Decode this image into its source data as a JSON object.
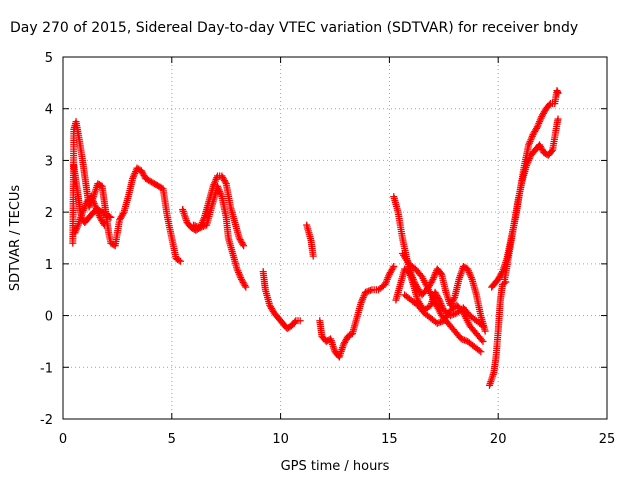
{
  "chart_data": {
    "type": "scatter",
    "title": "Day 270 of 2015, Sidereal Day-to-day VTEC variation (SDTVAR) for receiver bndy",
    "xlabel": "GPS time / hours",
    "ylabel": "SDTVAR / TECUs",
    "xlim": [
      0,
      25
    ],
    "ylim": [
      -2,
      5
    ],
    "xticks": [
      0,
      5,
      10,
      15,
      20,
      25
    ],
    "yticks": [
      -2,
      -1,
      0,
      1,
      2,
      3,
      4,
      5
    ],
    "grid": true,
    "marker": "+",
    "color": "#ff0000",
    "series": [
      {
        "name": "bndy",
        "segments": [
          [
            [
              0.45,
              1.4
            ],
            [
              0.5,
              3.6
            ],
            [
              0.6,
              3.75
            ],
            [
              0.75,
              3.4
            ],
            [
              0.9,
              3.0
            ],
            [
              1.0,
              2.7
            ],
            [
              1.1,
              2.4
            ],
            [
              1.2,
              2.1
            ],
            [
              1.4,
              2.3
            ],
            [
              1.6,
              2.55
            ],
            [
              1.8,
              2.5
            ],
            [
              1.9,
              2.2
            ],
            [
              2.0,
              1.9
            ],
            [
              2.1,
              1.6
            ],
            [
              2.2,
              1.4
            ],
            [
              2.4,
              1.35
            ],
            [
              2.5,
              1.6
            ],
            [
              2.6,
              1.85
            ],
            [
              2.8,
              2.0
            ],
            [
              3.0,
              2.3
            ],
            [
              3.2,
              2.65
            ],
            [
              3.4,
              2.85
            ],
            [
              3.6,
              2.8
            ],
            [
              3.8,
              2.65
            ],
            [
              4.0,
              2.6
            ],
            [
              4.2,
              2.55
            ],
            [
              4.4,
              2.5
            ],
            [
              4.6,
              2.45
            ],
            [
              4.8,
              1.9
            ],
            [
              5.0,
              1.5
            ],
            [
              5.2,
              1.1
            ],
            [
              5.4,
              1.05
            ]
          ],
          [
            [
              0.5,
              2.9
            ],
            [
              0.6,
              2.6
            ],
            [
              0.7,
              2.3
            ],
            [
              0.8,
              2.0
            ],
            [
              0.9,
              1.85
            ],
            [
              1.0,
              1.8
            ],
            [
              1.2,
              1.9
            ],
            [
              1.4,
              2.0
            ],
            [
              1.6,
              2.05
            ],
            [
              1.8,
              2.0
            ],
            [
              2.0,
              1.95
            ],
            [
              2.2,
              1.9
            ]
          ],
          [
            [
              0.55,
              1.6
            ],
            [
              0.7,
              1.75
            ],
            [
              0.9,
              2.0
            ],
            [
              1.1,
              2.2
            ],
            [
              1.3,
              2.3
            ],
            [
              1.5,
              2.1
            ],
            [
              1.7,
              1.9
            ],
            [
              1.9,
              1.75
            ]
          ],
          [
            [
              5.5,
              2.05
            ],
            [
              5.7,
              1.8
            ],
            [
              5.9,
              1.7
            ],
            [
              6.1,
              1.65
            ],
            [
              6.3,
              1.7
            ],
            [
              6.5,
              1.9
            ],
            [
              6.7,
              2.2
            ],
            [
              6.9,
              2.5
            ],
            [
              7.1,
              2.7
            ],
            [
              7.3,
              2.7
            ],
            [
              7.5,
              2.55
            ],
            [
              7.7,
              2.1
            ],
            [
              7.9,
              1.8
            ],
            [
              8.1,
              1.5
            ],
            [
              8.3,
              1.35
            ]
          ],
          [
            [
              6.0,
              1.75
            ],
            [
              6.3,
              1.7
            ],
            [
              6.6,
              1.75
            ],
            [
              6.9,
              2.2
            ],
            [
              7.1,
              2.5
            ],
            [
              7.3,
              2.3
            ],
            [
              7.5,
              1.9
            ],
            [
              7.6,
              1.5
            ],
            [
              7.8,
              1.2
            ],
            [
              8.0,
              0.9
            ],
            [
              8.2,
              0.7
            ],
            [
              8.4,
              0.55
            ]
          ],
          [
            [
              9.2,
              0.85
            ],
            [
              9.3,
              0.5
            ],
            [
              9.5,
              0.2
            ],
            [
              9.7,
              0.05
            ],
            [
              9.9,
              -0.05
            ],
            [
              10.1,
              -0.15
            ],
            [
              10.3,
              -0.25
            ],
            [
              10.5,
              -0.2
            ],
            [
              10.7,
              -0.1
            ],
            [
              10.9,
              -0.1
            ]
          ],
          [
            [
              11.2,
              1.75
            ],
            [
              11.4,
              1.45
            ],
            [
              11.5,
              1.15
            ]
          ],
          [
            [
              11.8,
              -0.1
            ],
            [
              11.9,
              -0.4
            ],
            [
              12.1,
              -0.5
            ],
            [
              12.3,
              -0.45
            ],
            [
              12.5,
              -0.7
            ],
            [
              12.7,
              -0.8
            ],
            [
              12.9,
              -0.55
            ],
            [
              13.1,
              -0.4
            ],
            [
              13.3,
              -0.35
            ],
            [
              13.5,
              -0.05
            ],
            [
              13.7,
              0.25
            ],
            [
              13.9,
              0.45
            ],
            [
              14.2,
              0.5
            ],
            [
              14.5,
              0.5
            ],
            [
              14.8,
              0.6
            ],
            [
              15.0,
              0.8
            ],
            [
              15.2,
              0.95
            ]
          ],
          [
            [
              15.2,
              2.3
            ],
            [
              15.4,
              2.0
            ],
            [
              15.6,
              1.5
            ],
            [
              15.8,
              1.1
            ],
            [
              16.0,
              0.8
            ],
            [
              16.2,
              0.6
            ],
            [
              16.5,
              0.4
            ],
            [
              16.8,
              0.55
            ],
            [
              17.0,
              0.7
            ],
            [
              17.2,
              0.9
            ],
            [
              17.4,
              0.8
            ],
            [
              17.6,
              0.45
            ],
            [
              17.8,
              0.2
            ],
            [
              18.0,
              0.35
            ],
            [
              18.2,
              0.7
            ],
            [
              18.4,
              0.95
            ],
            [
              18.6,
              0.9
            ],
            [
              18.8,
              0.7
            ],
            [
              19.0,
              0.4
            ],
            [
              19.2,
              0.0
            ],
            [
              19.4,
              -0.3
            ]
          ],
          [
            [
              15.3,
              0.3
            ],
            [
              15.5,
              0.6
            ],
            [
              15.7,
              0.9
            ],
            [
              15.9,
              0.85
            ],
            [
              16.1,
              0.6
            ],
            [
              16.3,
              0.3
            ],
            [
              16.6,
              0.1
            ],
            [
              16.9,
              0.2
            ],
            [
              17.1,
              0.45
            ],
            [
              17.3,
              0.3
            ],
            [
              17.5,
              0.1
            ],
            [
              17.8,
              0.0
            ],
            [
              18.1,
              0.05
            ],
            [
              18.4,
              0.15
            ],
            [
              18.7,
              0.0
            ],
            [
              19.0,
              -0.1
            ],
            [
              19.3,
              -0.2
            ]
          ],
          [
            [
              15.6,
              1.2
            ],
            [
              15.9,
              1.0
            ],
            [
              16.2,
              0.9
            ],
            [
              16.5,
              0.75
            ],
            [
              16.8,
              0.5
            ],
            [
              17.1,
              0.25
            ],
            [
              17.4,
              0.0
            ],
            [
              17.7,
              -0.15
            ],
            [
              18.0,
              -0.3
            ],
            [
              18.3,
              -0.45
            ],
            [
              18.6,
              -0.5
            ],
            [
              18.9,
              -0.6
            ],
            [
              19.2,
              -0.7
            ]
          ],
          [
            [
              15.7,
              0.4
            ],
            [
              16.0,
              0.3
            ],
            [
              16.3,
              0.2
            ],
            [
              16.6,
              0.05
            ],
            [
              16.9,
              -0.05
            ],
            [
              17.2,
              -0.15
            ],
            [
              17.5,
              -0.1
            ],
            [
              17.8,
              0.1
            ],
            [
              18.1,
              0.2
            ],
            [
              18.4,
              0.05
            ],
            [
              18.7,
              -0.2
            ],
            [
              19.0,
              -0.35
            ],
            [
              19.3,
              -0.5
            ]
          ],
          [
            [
              19.6,
              -1.35
            ],
            [
              19.8,
              -1.1
            ],
            [
              19.9,
              -0.8
            ],
            [
              20.0,
              -0.3
            ],
            [
              20.1,
              0.3
            ],
            [
              20.2,
              0.6
            ],
            [
              20.35,
              0.65
            ]
          ],
          [
            [
              19.7,
              0.55
            ],
            [
              19.8,
              0.6
            ],
            [
              20.0,
              0.7
            ],
            [
              20.2,
              0.85
            ],
            [
              20.4,
              1.1
            ],
            [
              20.6,
              1.5
            ],
            [
              20.8,
              1.9
            ],
            [
              21.0,
              2.4
            ],
            [
              21.2,
              2.9
            ],
            [
              21.4,
              3.3
            ],
            [
              21.6,
              3.5
            ],
            [
              21.8,
              3.65
            ],
            [
              22.0,
              3.85
            ],
            [
              22.2,
              4.0
            ],
            [
              22.4,
              4.1
            ],
            [
              22.6,
              4.1
            ],
            [
              22.7,
              4.35
            ],
            [
              22.75,
              4.3
            ]
          ],
          [
            [
              20.3,
              0.7
            ],
            [
              20.5,
              1.2
            ],
            [
              20.7,
              1.7
            ],
            [
              20.9,
              2.2
            ],
            [
              21.1,
              2.6
            ],
            [
              21.3,
              2.9
            ],
            [
              21.5,
              3.1
            ],
            [
              21.7,
              3.2
            ],
            [
              21.9,
              3.3
            ],
            [
              22.1,
              3.15
            ],
            [
              22.3,
              3.1
            ],
            [
              22.5,
              3.2
            ],
            [
              22.7,
              3.7
            ],
            [
              22.75,
              3.8
            ]
          ]
        ]
      }
    ]
  }
}
